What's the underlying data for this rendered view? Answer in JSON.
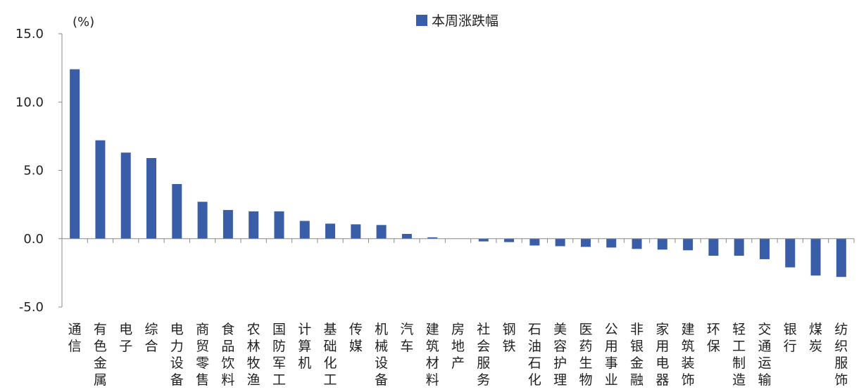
{
  "chart_data": {
    "type": "bar",
    "unit_label": "(%)",
    "legend_position": "top-center",
    "series": [
      {
        "name": "本周涨跌幅",
        "color": "#3a5da8",
        "values": [
          12.4,
          7.2,
          6.3,
          5.9,
          4.0,
          2.7,
          2.1,
          2.0,
          2.0,
          1.3,
          1.1,
          1.05,
          1.0,
          0.35,
          0.1,
          0.0,
          -0.2,
          -0.25,
          -0.5,
          -0.55,
          -0.6,
          -0.65,
          -0.75,
          -0.8,
          -0.85,
          -1.25,
          -1.25,
          -1.5,
          -2.1,
          -2.7,
          -2.8
        ]
      }
    ],
    "categories": [
      "通信",
      "有色金属",
      "电子",
      "综合",
      "电力设备",
      "商贸零售",
      "食品饮料",
      "农林牧渔",
      "国防军工",
      "计算机",
      "基础化工",
      "传媒",
      "机械设备",
      "汽车",
      "建筑材料",
      "房地产",
      "社会服务",
      "钢铁",
      "石油石化",
      "美容护理",
      "医药生物",
      "公用事业",
      "非银金融",
      "家用电器",
      "建筑装饰",
      "环保",
      "轻工制造",
      "交通运输",
      "银行",
      "煤炭",
      "纺织服饰"
    ],
    "ylim": [
      -5,
      15
    ],
    "yticks": [
      {
        "value": 15,
        "label": "15.0",
        "color": "#222222"
      },
      {
        "value": 10,
        "label": "10.0",
        "color": "#222222"
      },
      {
        "value": 5,
        "label": "5.0",
        "color": "#222222"
      },
      {
        "value": 0,
        "label": "0.0",
        "color": "#222222"
      },
      {
        "value": -5,
        "label": "-5.0",
        "color": "#e0262b"
      }
    ],
    "grid": false
  }
}
